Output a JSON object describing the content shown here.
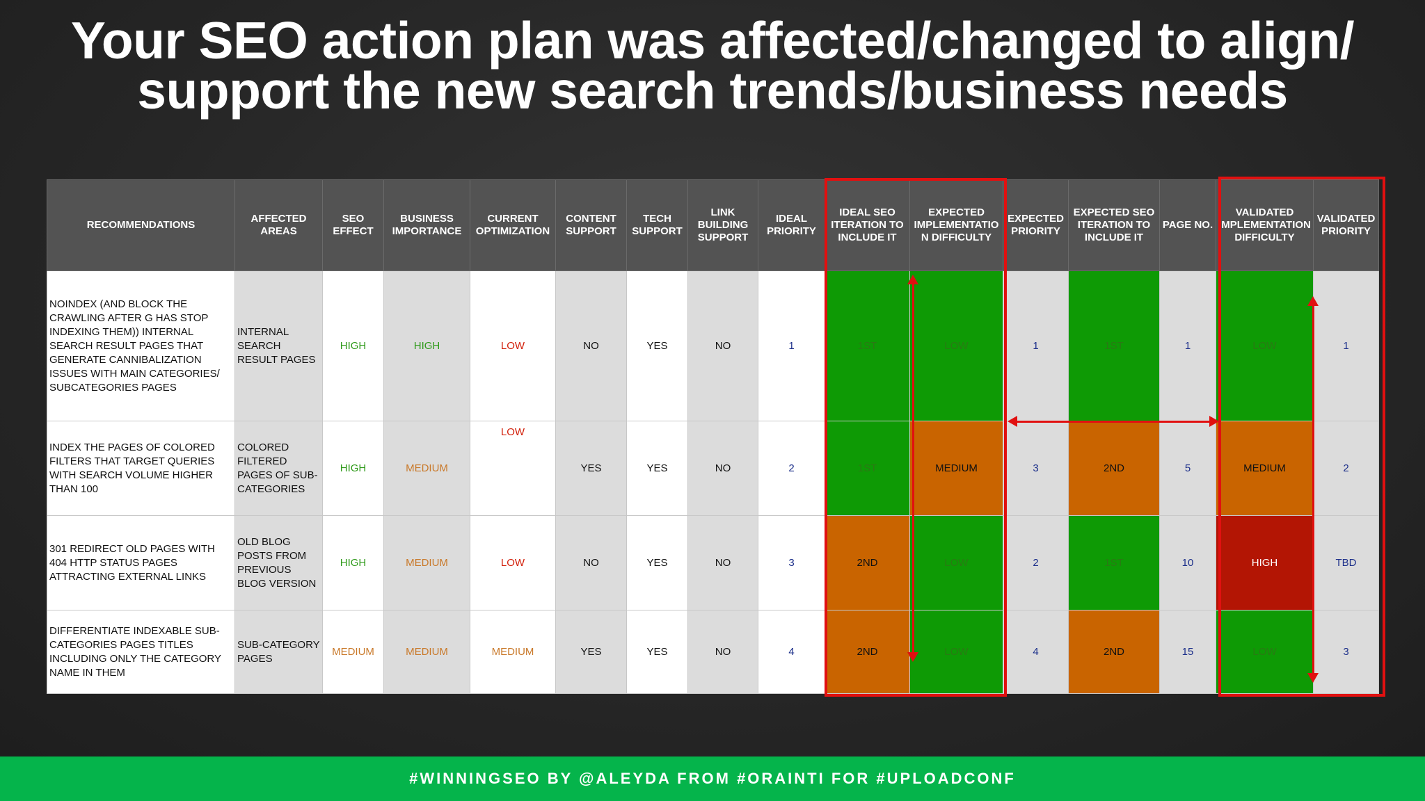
{
  "title": {
    "line1": "Your SEO action plan was affected/changed to align/",
    "line2": "support the new search trends/business needs"
  },
  "table": {
    "headers": [
      "RECOMMENDATIONS",
      "AFFECTED AREAS",
      "SEO EFFECT",
      "BUSINESS IMPORTANCE",
      "CURRENT OPTIMIZATION",
      "CONTENT SUPPORT",
      "TECH SUPPORT",
      "LINK BUILDING SUPPORT",
      "IDEAL PRIORITY",
      "IDEAL SEO ITERATION TO INCLUDE IT",
      "EXPECTED IMPLEMENTATIO N DIFFICULTY",
      "EXPECTED PRIORITY",
      "EXPECTED SEO ITERATION TO INCLUDE IT",
      "PAGE NO.",
      "VALIDATED IMPLEMENTATION DIFFICULTY",
      "VALIDATED PRIORITY"
    ],
    "rows": [
      [
        "NOINDEX (AND BLOCK THE CRAWLING AFTER G HAS STOP INDEXING THEM)) INTERNAL SEARCH RESULT PAGES THAT GENERATE CANNIBALIZATION ISSUES WITH MAIN CATEGORIES/ SUBCATEGORIES PAGES",
        "INTERNAL SEARCH RESULT PAGES",
        "HIGH",
        "HIGH",
        "LOW",
        "NO",
        "YES",
        "NO",
        "1",
        "1ST",
        "LOW",
        "1",
        "1ST",
        "1",
        "LOW",
        "1"
      ],
      [
        "INDEX THE PAGES OF COLORED FILTERS THAT TARGET QUERIES WITH SEARCH VOLUME HIGHER THAN 100",
        "COLORED FILTERED PAGES OF SUB-CATEGORIES",
        "HIGH",
        "MEDIUM",
        "LOW",
        "YES",
        "YES",
        "NO",
        "2",
        "1ST",
        "MEDIUM",
        "3",
        "2ND",
        "5",
        "MEDIUM",
        "2"
      ],
      [
        "301 REDIRECT OLD PAGES WITH 404 HTTP STATUS PAGES ATTRACTING EXTERNAL LINKS",
        "OLD BLOG POSTS FROM PREVIOUS BLOG VERSION",
        "HIGH",
        "MEDIUM",
        "LOW",
        "NO",
        "YES",
        "NO",
        "3",
        "2ND",
        "LOW",
        "2",
        "1ST",
        "10",
        "HIGH",
        "TBD"
      ],
      [
        "DIFFERENTIATE INDEXABLE SUB-CATEGORIES PAGES TITLES INCLUDING ONLY THE CATEGORY NAME IN THEM",
        "SUB-CATEGORY PAGES",
        "MEDIUM",
        "MEDIUM",
        "MEDIUM",
        "YES",
        "YES",
        "NO",
        "4",
        "2ND",
        "LOW",
        "4",
        "2ND",
        "15",
        "LOW",
        "3"
      ]
    ]
  },
  "colors": {
    "green_cell": "#0e9a05",
    "orange_cell": "#c96400",
    "red_cell": "#b31504",
    "highlight_border": "#e11010",
    "footer_bg": "#05b44b"
  },
  "footer": {
    "text": "#WINNINGSEO BY @ALEYDA FROM #ORAINTI FOR #UPLOADCONF"
  }
}
